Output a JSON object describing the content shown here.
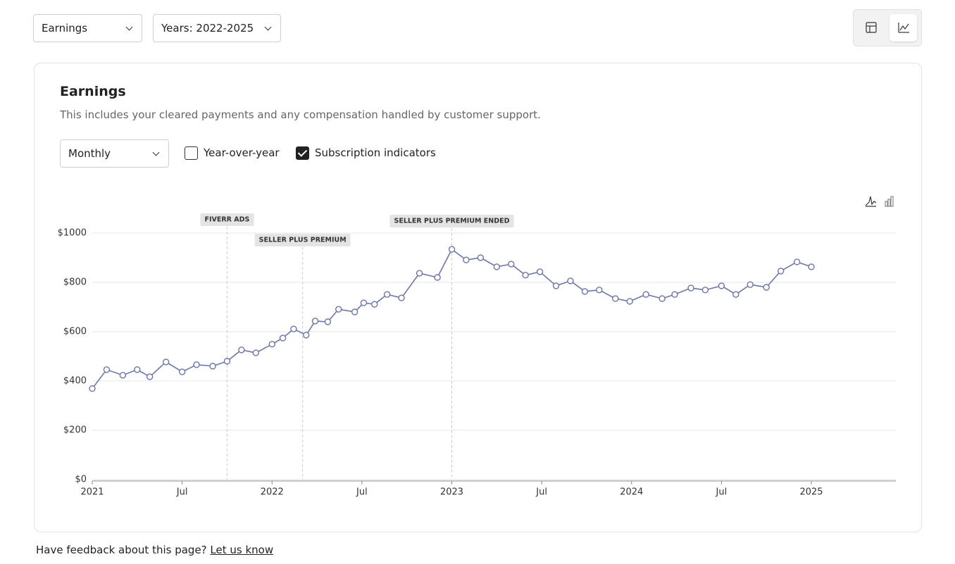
{
  "toolbar": {
    "metric": "Earnings",
    "years": "Years: 2022-2025"
  },
  "card": {
    "title": "Earnings",
    "description": "This includes your cleared payments and any compensation handled by customer support.",
    "period": "Monthly",
    "options": [
      {
        "label": "Year-over-year",
        "checked": false
      },
      {
        "label": "Subscription indicators",
        "checked": true
      }
    ]
  },
  "chart_data": {
    "type": "line",
    "x": [
      2021.0,
      2021.08,
      2021.17,
      2021.25,
      2021.32,
      2021.41,
      2021.5,
      2021.58,
      2021.67,
      2021.75,
      2021.83,
      2021.91,
      2022.0,
      2022.06,
      2022.12,
      2022.19,
      2022.24,
      2022.31,
      2022.37,
      2022.46,
      2022.51,
      2022.57,
      2022.64,
      2022.72,
      2022.82,
      2022.92,
      2023.0,
      2023.08,
      2023.16,
      2023.25,
      2023.33,
      2023.41,
      2023.49,
      2023.58,
      2023.66,
      2023.74,
      2023.82,
      2023.91,
      2023.99,
      2024.08,
      2024.17,
      2024.24,
      2024.33,
      2024.41,
      2024.5,
      2024.58,
      2024.66,
      2024.75,
      2024.83,
      2024.92,
      2025.0
    ],
    "series": [
      {
        "color": "#6b74b8",
        "values": [
          369,
          446,
          423,
          446,
          417,
          477,
          437,
          466,
          460,
          480,
          526,
          514,
          549,
          574,
          611,
          586,
          643,
          640,
          691,
          680,
          717,
          711,
          751,
          737,
          837,
          820,
          934,
          891,
          900,
          863,
          874,
          829,
          843,
          786,
          806,
          763,
          769,
          734,
          723,
          751,
          734,
          751,
          777,
          769,
          786,
          751,
          791,
          780,
          846,
          883,
          863
        ]
      }
    ],
    "xlim": [
      2021,
      2025.47
    ],
    "xticks": [
      {
        "value": 2021,
        "label": "2021"
      },
      {
        "value": 2021.5,
        "label": "Jul"
      },
      {
        "value": 2022,
        "label": "2022"
      },
      {
        "value": 2022.5,
        "label": "Jul"
      },
      {
        "value": 2023,
        "label": "2023"
      },
      {
        "value": 2023.5,
        "label": "Jul"
      },
      {
        "value": 2024,
        "label": "2024"
      },
      {
        "value": 2024.5,
        "label": "Jul"
      },
      {
        "value": 2025,
        "label": "2025"
      }
    ],
    "ylim": [
      0,
      1000
    ],
    "yticks": [
      {
        "value": 0,
        "label": "$0"
      },
      {
        "value": 200,
        "label": "$200"
      },
      {
        "value": 400,
        "label": "$400"
      },
      {
        "value": 600,
        "label": "$600"
      },
      {
        "value": 800,
        "label": "$800"
      },
      {
        "value": 1000,
        "label": "$1000"
      }
    ],
    "grid": true,
    "annotations": [
      {
        "label": "FIVERR ADS",
        "x": 2021.75
      },
      {
        "label": "SELLER PLUS PREMIUM",
        "x": 2022.17
      },
      {
        "label": "SELLER PLUS PREMIUM ENDED",
        "x": 2023.0
      }
    ]
  },
  "footer": {
    "text": "Have feedback about this page?",
    "link": "Let us know"
  }
}
